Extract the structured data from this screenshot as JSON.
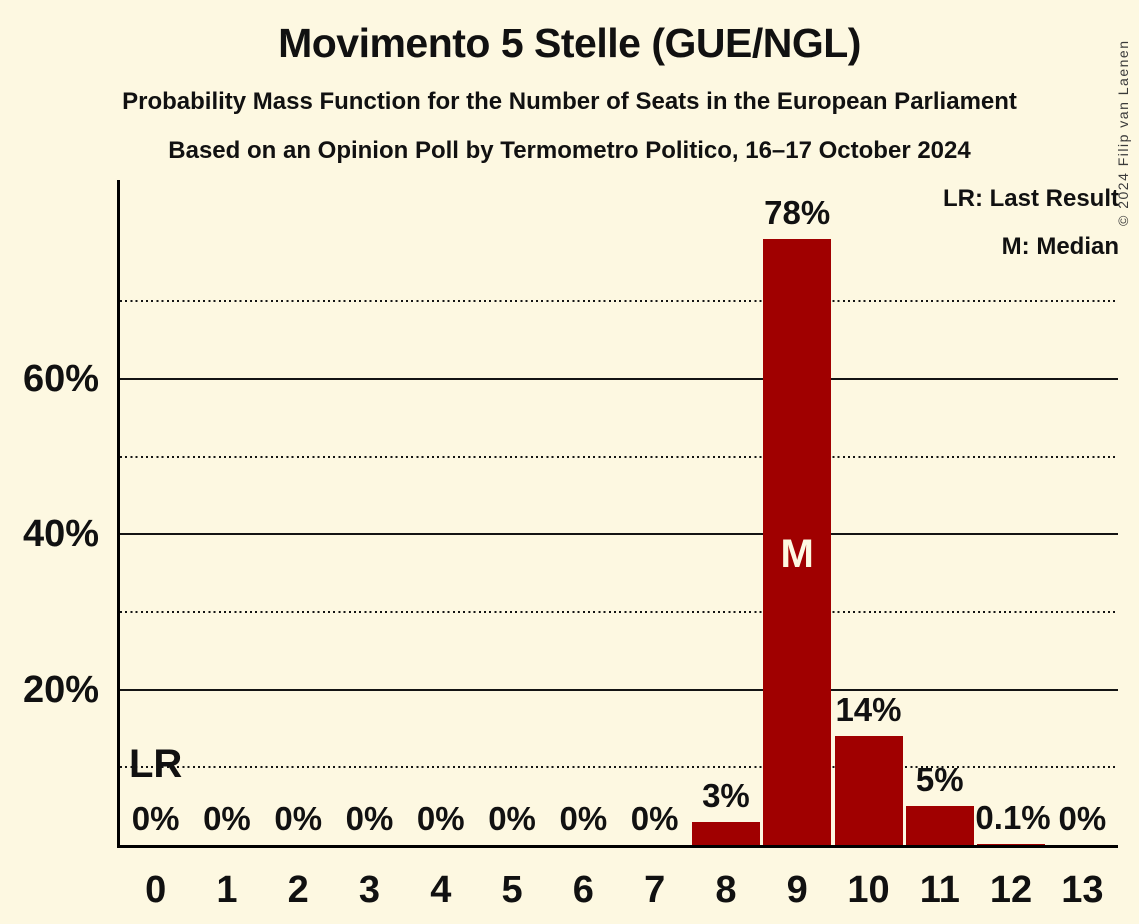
{
  "chart_data": {
    "type": "bar",
    "title": "Movimento 5 Stelle (GUE/NGL)",
    "subtitle": "Probability Mass Function for the Number of Seats in the European Parliament",
    "poll_note": "Based on an Opinion Poll by Termometro Politico, 16–17 October 2024",
    "xlabel": "",
    "ylabel": "",
    "categories": [
      "0",
      "1",
      "2",
      "3",
      "4",
      "5",
      "6",
      "7",
      "8",
      "9",
      "10",
      "11",
      "12",
      "13"
    ],
    "values": [
      0,
      0,
      0,
      0,
      0,
      0,
      0,
      0,
      3,
      78,
      14,
      5,
      0.1,
      0
    ],
    "bar_labels": [
      "0%",
      "0%",
      "0%",
      "0%",
      "0%",
      "0%",
      "0%",
      "0%",
      "3%",
      "78%",
      "14%",
      "5%",
      "0.1%",
      "0%"
    ],
    "ylim": [
      0,
      85
    ],
    "y_ticks": [
      {
        "pct": 20,
        "label": "20%"
      },
      {
        "pct": 40,
        "label": "40%"
      },
      {
        "pct": 60,
        "label": "60%"
      }
    ],
    "gridlines": {
      "solid_pct": [
        20,
        40,
        60
      ],
      "dotted_pct": [
        10,
        30,
        50,
        70
      ]
    },
    "legend": [
      "LR: Last Result",
      "M: Median"
    ],
    "median": {
      "seat": "9",
      "label": "M"
    },
    "last_result": {
      "seat": "0",
      "label": "LR"
    },
    "colors": {
      "bar": "#A00000",
      "background": "#FDF8E1",
      "text": "#111111",
      "grid": "#141414"
    }
  },
  "copyright": "© 2024 Filip van Laenen"
}
